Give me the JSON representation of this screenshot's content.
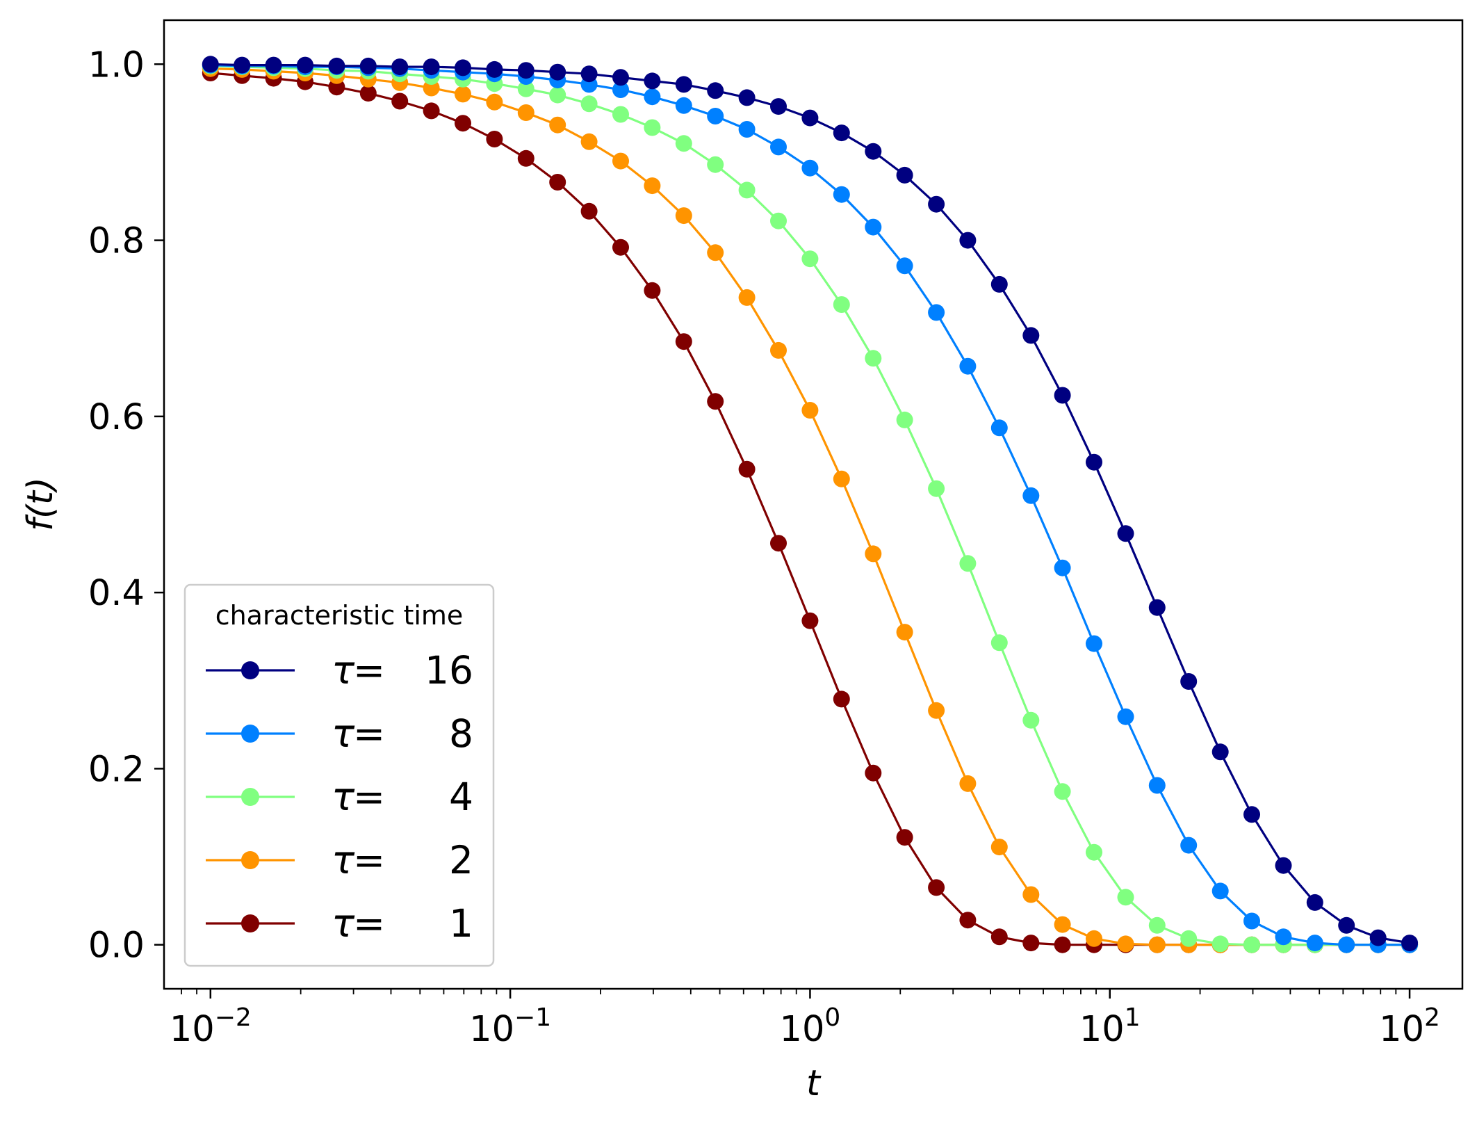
{
  "chart_data": {
    "type": "line",
    "xscale": "log",
    "xlim": [
      0.007,
      150
    ],
    "ylim": [
      -0.05,
      1.05
    ],
    "xlabel": "t",
    "ylabel": "f(t)",
    "grid": false,
    "x_ticks": [
      {
        "value": 0.01,
        "base": "10",
        "exp": "−2"
      },
      {
        "value": 0.1,
        "base": "10",
        "exp": "−1"
      },
      {
        "value": 1,
        "base": "10",
        "exp": "0"
      },
      {
        "value": 10,
        "base": "10",
        "exp": "1"
      },
      {
        "value": 100,
        "base": "10",
        "exp": "2"
      }
    ],
    "y_ticks": [
      "0.0",
      "0.2",
      "0.4",
      "0.6",
      "0.8",
      "1.0"
    ],
    "y_tick_values": [
      0,
      0.2,
      0.4,
      0.6,
      0.8,
      1.0
    ],
    "legend": {
      "title": "characteristic time",
      "placement": "lower-left"
    },
    "x": [
      0.01,
      0.01274,
      0.01624,
      0.02069,
      0.02637,
      0.0336,
      0.04281,
      0.05456,
      0.06952,
      0.08859,
      0.1129,
      0.1438,
      0.1833,
      0.2336,
      0.2976,
      0.3793,
      0.4833,
      0.6158,
      0.7848,
      1.0,
      1.274,
      1.624,
      2.069,
      2.637,
      3.36,
      4.281,
      5.456,
      6.952,
      8.859,
      11.29,
      14.38,
      18.33,
      23.36,
      29.76,
      37.93,
      48.33,
      61.58,
      78.48,
      100
    ],
    "series": [
      {
        "name": "τ=  16",
        "legend_symbol": "τ",
        "legend_value": "16",
        "color": "#000080",
        "values": [
          1.0,
          0.999,
          0.999,
          0.999,
          0.998,
          0.998,
          0.997,
          0.997,
          0.996,
          0.994,
          0.993,
          0.991,
          0.989,
          0.985,
          0.981,
          0.977,
          0.97,
          0.962,
          0.952,
          0.939,
          0.922,
          0.901,
          0.874,
          0.841,
          0.8,
          0.75,
          0.692,
          0.624,
          0.548,
          0.467,
          0.383,
          0.299,
          0.219,
          0.148,
          0.09,
          0.048,
          0.022,
          0.008,
          0.002
        ]
      },
      {
        "name": "τ=   8",
        "legend_symbol": "τ",
        "legend_value": "8",
        "color": "#0080ff",
        "values": [
          0.999,
          0.998,
          0.998,
          0.997,
          0.997,
          0.996,
          0.995,
          0.993,
          0.991,
          0.989,
          0.986,
          0.982,
          0.977,
          0.971,
          0.963,
          0.953,
          0.941,
          0.926,
          0.906,
          0.882,
          0.852,
          0.815,
          0.771,
          0.718,
          0.657,
          0.587,
          0.51,
          0.428,
          0.342,
          0.259,
          0.181,
          0.113,
          0.061,
          0.027,
          0.009,
          0.002,
          0.0,
          0.0,
          0.0
        ]
      },
      {
        "name": "τ=   4",
        "legend_symbol": "τ",
        "legend_value": "4",
        "color": "#80ff80",
        "values": [
          0.998,
          0.997,
          0.996,
          0.995,
          0.993,
          0.992,
          0.989,
          0.986,
          0.983,
          0.978,
          0.972,
          0.965,
          0.955,
          0.943,
          0.928,
          0.91,
          0.886,
          0.857,
          0.822,
          0.779,
          0.727,
          0.666,
          0.596,
          0.518,
          0.433,
          0.343,
          0.255,
          0.174,
          0.105,
          0.054,
          0.022,
          0.007,
          0.001,
          0.0,
          0.0,
          0.0,
          0.0,
          0.0,
          0.0
        ]
      },
      {
        "name": "τ=   2",
        "legend_symbol": "τ",
        "legend_value": "2",
        "color": "#ff9400",
        "values": [
          0.995,
          0.994,
          0.992,
          0.99,
          0.987,
          0.983,
          0.979,
          0.973,
          0.966,
          0.957,
          0.945,
          0.931,
          0.912,
          0.89,
          0.862,
          0.828,
          0.786,
          0.735,
          0.675,
          0.607,
          0.529,
          0.444,
          0.355,
          0.266,
          0.183,
          0.111,
          0.057,
          0.023,
          0.007,
          0.001,
          0.0,
          0.0,
          0.0,
          0.0,
          0.0,
          0.0,
          0.0,
          0.0,
          0.0
        ]
      },
      {
        "name": "τ=   1",
        "legend_symbol": "τ",
        "legend_value": "1",
        "color": "#800000",
        "values": [
          0.99,
          0.987,
          0.984,
          0.98,
          0.974,
          0.967,
          0.958,
          0.947,
          0.933,
          0.915,
          0.893,
          0.866,
          0.833,
          0.792,
          0.743,
          0.685,
          0.617,
          0.54,
          0.456,
          0.368,
          0.279,
          0.195,
          0.122,
          0.065,
          0.028,
          0.009,
          0.002,
          0.0,
          0.0,
          0.0,
          0.0,
          0.0,
          0.0,
          0.0,
          0.0,
          0.0,
          0.0,
          0.0,
          0.0
        ]
      }
    ]
  }
}
